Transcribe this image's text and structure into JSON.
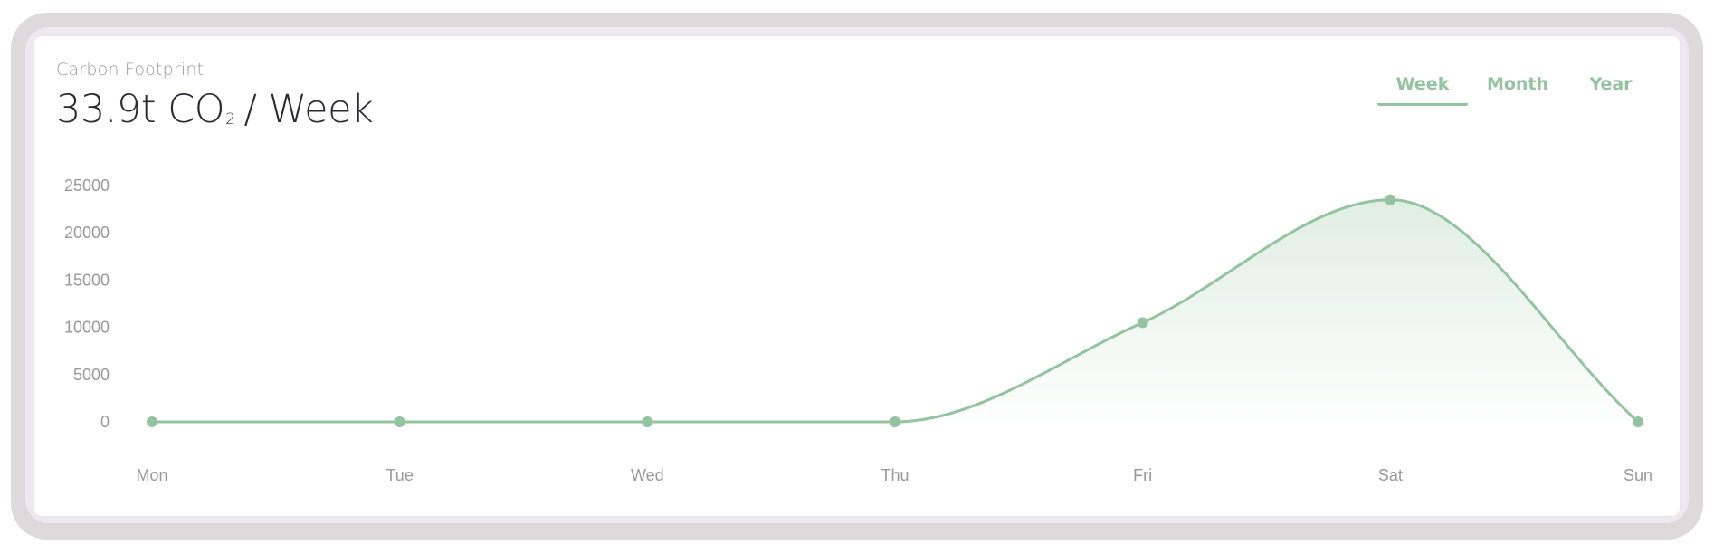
{
  "card": {
    "label": "Carbon Footprint",
    "value_main": "33.9t CO",
    "value_sub": "2",
    "value_suffix": "/ Week"
  },
  "tabs": [
    {
      "label": "Week",
      "active": true
    },
    {
      "label": "Month",
      "active": false
    },
    {
      "label": "Year",
      "active": false
    }
  ],
  "colors": {
    "accent": "#93c39f"
  },
  "chart_data": {
    "type": "area",
    "categories": [
      "Mon",
      "Tue",
      "Wed",
      "Thu",
      "Fri",
      "Sat",
      "Sun"
    ],
    "series": [
      {
        "values": [
          0,
          0,
          0,
          0,
          10500,
          23500,
          0
        ]
      }
    ],
    "yticks": [
      0,
      5000,
      10000,
      15000,
      20000,
      25000
    ],
    "ylim": [
      0,
      25000
    ],
    "title": "",
    "xlabel": "",
    "ylabel": "",
    "grid": false,
    "legend": "none"
  }
}
